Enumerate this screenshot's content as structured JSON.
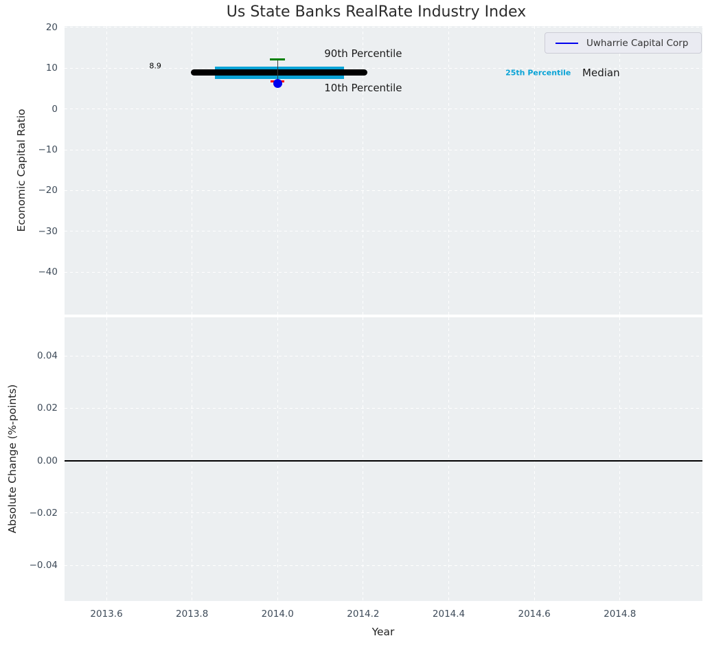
{
  "title": "Us State Banks RealRate Industry Index",
  "legend": {
    "label": "Uwharrie Capital Corp",
    "line_color": "#0000ee"
  },
  "colors": {
    "figure_bg": "#ffffff",
    "plot_bg": "#eceff1",
    "grid": "#ffffff",
    "tick_label": "#3d4a58",
    "text": "#222222",
    "median": "#000000",
    "percentile_band": "#0aa3d6",
    "p90_cap": "#008000",
    "p10_cap": "#ff0000",
    "company_marker": "#0000ee",
    "whisker": "#3a3a3a",
    "zero_line": "#000000"
  },
  "chart_data": [
    {
      "type": "scatter",
      "name": "economic-capital-ratio-panel",
      "title": "Us State Banks RealRate Industry Index",
      "ylabel": "Economic Capital Ratio",
      "xlim": [
        2013.502,
        2014.993
      ],
      "ylim": [
        -50.4,
        20.3
      ],
      "grid": true,
      "legend_position": "upper right",
      "yticks": {
        "values": [
          20,
          10,
          0,
          -10,
          -20,
          -30,
          -40
        ],
        "labels": [
          "20",
          "10",
          "0",
          "−10",
          "−20",
          "−30",
          "−40"
        ]
      },
      "xticks": {
        "values": [
          2013.6,
          2013.8,
          2014.0,
          2014.2,
          2014.4,
          2014.6,
          2014.8
        ],
        "labels": [
          "2013.6",
          "2013.8",
          "2014.0",
          "2014.2",
          "2014.4",
          "2014.6",
          "2014.8"
        ],
        "labels_visible": false
      },
      "median_line": {
        "label": "Median",
        "value": 8.9,
        "value_label": "8.9",
        "x_start": 2013.797,
        "x_end": 2014.21
      },
      "iqr_band": {
        "label": "25th Percentile",
        "center_value": 8.9,
        "x_start": 2013.853,
        "x_end": 2014.155,
        "span_top": 10.4,
        "span_bottom": 7.3
      },
      "percentile_whisker": {
        "x": 2014.0,
        "p90": 12.2,
        "p10": 6.7,
        "p90_label": "90th Percentile",
        "p10_label": "10th Percentile"
      },
      "company_point": {
        "name": "Uwharrie Capital Corp",
        "x": 2014.0,
        "value": 6.3
      },
      "annotations": [
        {
          "id": "median-value",
          "text": "8.9",
          "x": 2013.714,
          "y": 10.6,
          "size": 11,
          "color": "#000000",
          "weight": "normal"
        },
        {
          "id": "p90-label",
          "text": "90th Percentile",
          "x": 2014.2,
          "y": 13.6,
          "size": 15,
          "color": "#1a1a1a",
          "weight": "normal"
        },
        {
          "id": "p10-label",
          "text": "10th Percentile",
          "x": 2014.2,
          "y": 5.2,
          "size": 15,
          "color": "#1a1a1a",
          "weight": "normal"
        },
        {
          "id": "p25-label",
          "text": "25th Percentile",
          "x": 2014.609,
          "y": 8.8,
          "size": 11,
          "color": "#0aa3d6",
          "weight": "bold"
        },
        {
          "id": "median-label",
          "text": "Median",
          "x": 2014.756,
          "y": 8.8,
          "size": 15,
          "color": "#1a1a1a",
          "weight": "normal"
        }
      ]
    },
    {
      "type": "line",
      "name": "absolute-change-panel",
      "ylabel": "Absolute Change (%-points)",
      "xlabel": "Year",
      "xlim": [
        2013.502,
        2014.993
      ],
      "ylim": [
        -0.0536,
        0.0547
      ],
      "grid": true,
      "yticks": {
        "values": [
          0.04,
          0.02,
          0,
          -0.02,
          -0.04
        ],
        "labels": [
          "0.04",
          "0.02",
          "0.00",
          "−0.02",
          "−0.04"
        ]
      },
      "xticks": {
        "values": [
          2013.6,
          2013.8,
          2014.0,
          2014.2,
          2014.4,
          2014.6,
          2014.8
        ],
        "labels": [
          "2013.6",
          "2013.8",
          "2014.0",
          "2014.2",
          "2014.4",
          "2014.6",
          "2014.8"
        ],
        "labels_visible": true
      },
      "zero_line": {
        "value": 0.0
      },
      "series": []
    }
  ]
}
